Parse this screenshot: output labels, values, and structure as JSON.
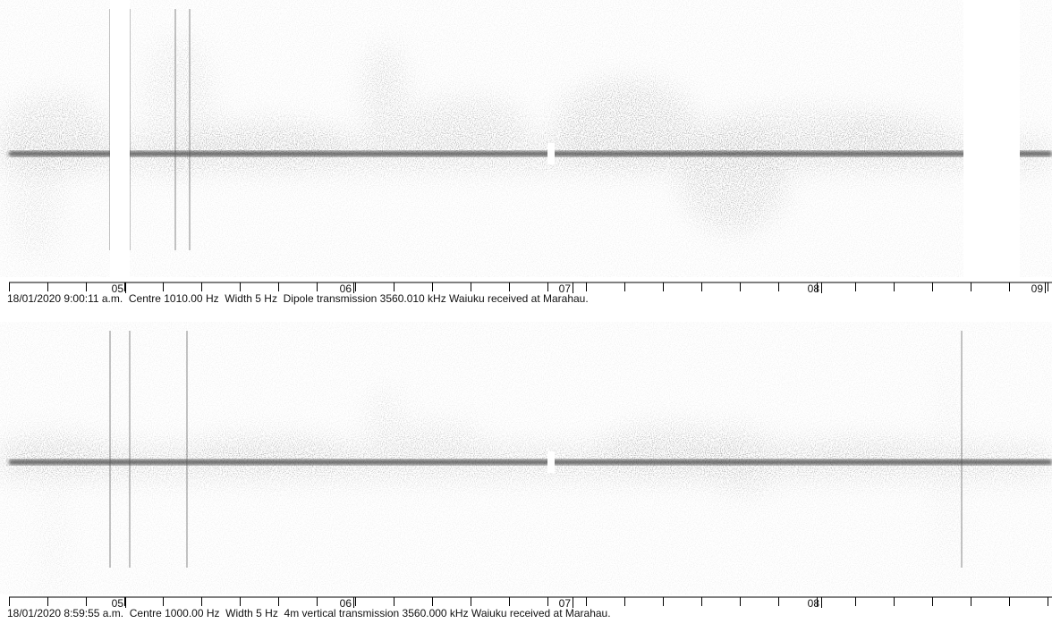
{
  "panels": [
    {
      "time_labels": [
        "05",
        "06",
        "07",
        "08",
        "09"
      ],
      "caption": "18/01/2020 9:00:11 a.m.  Centre 1010.00 Hz  Width 5 Hz  Dipole transmission 3560.010 kHz Waiuku received at Marahau."
    },
    {
      "time_labels": [
        "05",
        "06",
        "07",
        "08"
      ],
      "caption": "18/01/2020 8:59:55 a.m.  Centre 1000.00 Hz  Width 5 Hz  4m vertical transmission 3560.000 kHz Waiuku received at Marahau."
    }
  ]
}
